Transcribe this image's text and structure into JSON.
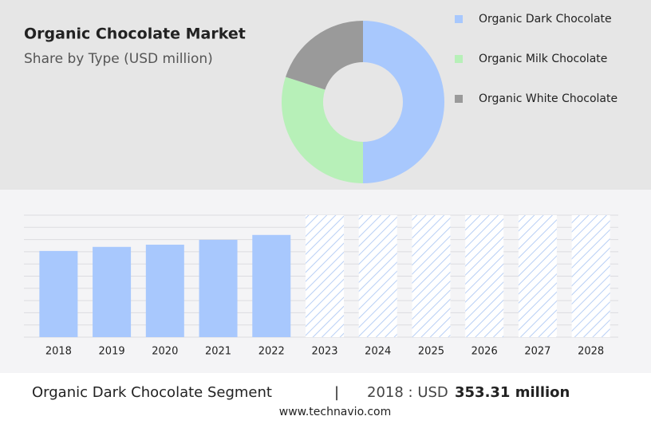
{
  "title": "Organic Chocolate Market",
  "subtitle": "Share by Type (USD million)",
  "chart_data": [
    {
      "type": "pie",
      "categories": [
        "Organic Dark Chocolate",
        "Organic Milk Chocolate",
        "Organic White Chocolate"
      ],
      "values": [
        50,
        30,
        20
      ],
      "colors": [
        "#a8c8fd",
        "#b7f0b8",
        "#9a9a9a"
      ]
    },
    {
      "type": "bar",
      "categories": [
        "2018",
        "2019",
        "2020",
        "2021",
        "2022",
        "2023",
        "2024",
        "2025",
        "2026",
        "2027",
        "2028"
      ],
      "values": [
        353.31,
        370,
        379,
        399,
        419,
        null,
        null,
        null,
        null,
        null,
        null
      ],
      "color": "#a8c8fd",
      "ylim": [
        0,
        500
      ],
      "yticks": [
        0,
        50,
        100,
        150,
        200,
        250,
        300,
        350,
        400,
        450,
        500
      ],
      "grid": true
    }
  ],
  "footer": {
    "segment": "Organic Dark Chocolate Segment",
    "separator": "|",
    "year_label": "2018 : USD",
    "value_label": "353.31 million",
    "source": "www.technavio.com"
  }
}
